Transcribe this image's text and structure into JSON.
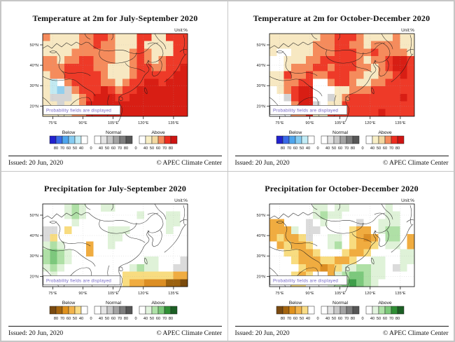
{
  "meta": {
    "issued": "Issued: 20 Jun, 2020",
    "copyright": "© APEC Climate Center",
    "unit_label": "Unit:%",
    "probability_note": "Probability fields are displayed"
  },
  "colors": {
    "panel_border": "#c6c6c6",
    "map_frame": "#000000",
    "coastline": "#1a1a1a",
    "probability_text": "#7465c4",
    "graticule": "#aaaaaa"
  },
  "axes": {
    "lat_labels": [
      "50°N",
      "40°N",
      "30°N",
      "20°N"
    ],
    "lon_labels": [
      "75°E",
      "90°E",
      "105°E",
      "120°E",
      "135°E"
    ]
  },
  "palette": {
    "W": "#ffffff",
    "C": "#f7e8c2",
    "O": "#f58b5c",
    "R": "#ee3a28",
    "D": "#d81e14",
    "b": "#c2eaf2",
    "c": "#92cfee",
    "G": "#d4d4d4",
    "L": "#dbdbdb",
    "a": "#dff2d8",
    "A": "#afe0a6",
    "H": "#7cc87c",
    "E": "#3f9e4a",
    "Y": "#f8dc80",
    "P": "#f0ac40",
    "N": "#dc8e24",
    "n": "#9c6210",
    "m": "#7a4a0c"
  },
  "colorbar": {
    "temperature": {
      "separator": "0",
      "groups": [
        {
          "label": "Below",
          "colors": [
            "#2222ce",
            "#3a6be8",
            "#4fa6ee",
            "#86ccf2",
            "#c2ecf6",
            "#ffffff"
          ],
          "ticks": [
            "80",
            "70",
            "60",
            "50",
            "40"
          ]
        },
        {
          "label": "Normal",
          "colors": [
            "#ffffff",
            "#e4e4e4",
            "#c8c8c8",
            "#a4a4a4",
            "#7e7e7e",
            "#565656"
          ],
          "ticks": [
            "40",
            "50",
            "60",
            "70",
            "80"
          ]
        },
        {
          "label": "Above",
          "colors": [
            "#ffffff",
            "#f8efc6",
            "#f3d9a2",
            "#f58b5c",
            "#ee2d20",
            "#ce1412"
          ],
          "ticks": [
            "40",
            "50",
            "60",
            "70",
            "80"
          ]
        }
      ]
    },
    "precipitation": {
      "separator": "0",
      "groups": [
        {
          "label": "Below",
          "colors": [
            "#7a4a10",
            "#a5650f",
            "#e0921e",
            "#f2b44c",
            "#f9dc86",
            "#ffffff"
          ],
          "ticks": [
            "80",
            "70",
            "60",
            "50",
            "40"
          ]
        },
        {
          "label": "Normal",
          "colors": [
            "#ffffff",
            "#e4e4e4",
            "#c8c8c8",
            "#a4a4a4",
            "#7e7e7e",
            "#565656"
          ],
          "ticks": [
            "40",
            "50",
            "60",
            "70",
            "80"
          ]
        },
        {
          "label": "Above",
          "colors": [
            "#ffffff",
            "#e2f3de",
            "#afe2a8",
            "#7cc97a",
            "#2f8f35",
            "#1c5f24"
          ],
          "ticks": [
            "40",
            "50",
            "60",
            "70",
            "80"
          ]
        }
      ]
    }
  },
  "panels": [
    {
      "id": "temp-jas",
      "title": "Temperature at 2m for July-September 2020",
      "variable": "temperature",
      "grid": [
        "OCCCCOORROCCCRRCCRRR",
        "CCCCCOOROOCCCRCCCCRR",
        "CCCCOOOOOOCCOROCCCRR",
        "OOCOORROOOCCOROCORRR",
        "OOORRRROOCCCORROORRD",
        "COORRRRROCCCORRRRRDD",
        "CbWORRRROOCORRDDRDDD",
        "CbcGORRRDRORRDDDDDDD",
        "CGGGCORDDDRRDDDDDDDD",
        "CCGCCODDDDDDDDDDDDDD",
        "CCCCOODDDDDDDDDDDDDD"
      ]
    },
    {
      "id": "temp-ond",
      "title": "Temperature at 2m for October-December 2020",
      "variable": "temperature",
      "grid": [
        "CCCCCCCOORRROCCCCOCC",
        "CCCCCCOOORROOCOOOOCC",
        "CWWCCCOOORRROOROOOOC",
        "WWCCCOORRRRROCOORDDR",
        "WWCOOORRORRROOCORDDR",
        "CCROOROORRROOCCOORDR",
        "CCOORRWWORROCCOORRRR",
        "WCORDDWWWCCOOORRRRRR",
        "WWGRDDWWGCORRRRRRRDR",
        "WWWODDGWCCRRRRRRRRRR",
        "WWWOODCCRRRRRRRDRRRR"
      ]
    },
    {
      "id": "precip-jas",
      "title": "Precipitation for July-September 2020",
      "variable": "precipitation",
      "grid": [
        "WWWaAaWWaaWWWWWWWWWW",
        "WWWaAaWWWWWWWaWWWaaW",
        "WWWWaWWWWWWWWWWWWaaW",
        "LLWYWWWWWaaaWWWWWaWW",
        "LYWWWWWWWaaWWWWWWWWW",
        "aAaWWWPWWaWWWWWWWWWW",
        "AHAaWWPWWWWWWWWWWWWW",
        "AHAaWWWWWWWWWWaaWWWL",
        "aAaWWWWWWWWWaAaaWWLL",
        "WaWWWWWWWWWYYYYYYYPP",
        "WWWWWWWWWWWYPPNNNnnm"
      ]
    },
    {
      "id": "precip-ond",
      "title": "Precipitation for October-December 2020",
      "variable": "precipitation",
      "grid": [
        "WWWWWWaaWaaWWWWWaWWW",
        "WWWWWWaAaaWWWWWWaaWW",
        "PPWWWLWaWWWWLWWaaaWW",
        "PPPaWLLWWWWYPPWaAAWW",
        "PYPPYLWWaaWYPNPWAAWP",
        "WPYPPYWWaAWYPPYWaaWP",
        "WWYYPPYWWWYPPYWWWWaa",
        "WWWYPPPYYPPYWWaaWWaa",
        "WWWWYPPNPYaaAAaaWLaW",
        "WWWYPYWWPaAHHAaaWWWW",
        "WWWYYWWWaAHEHAaWWWWW"
      ]
    }
  ]
}
